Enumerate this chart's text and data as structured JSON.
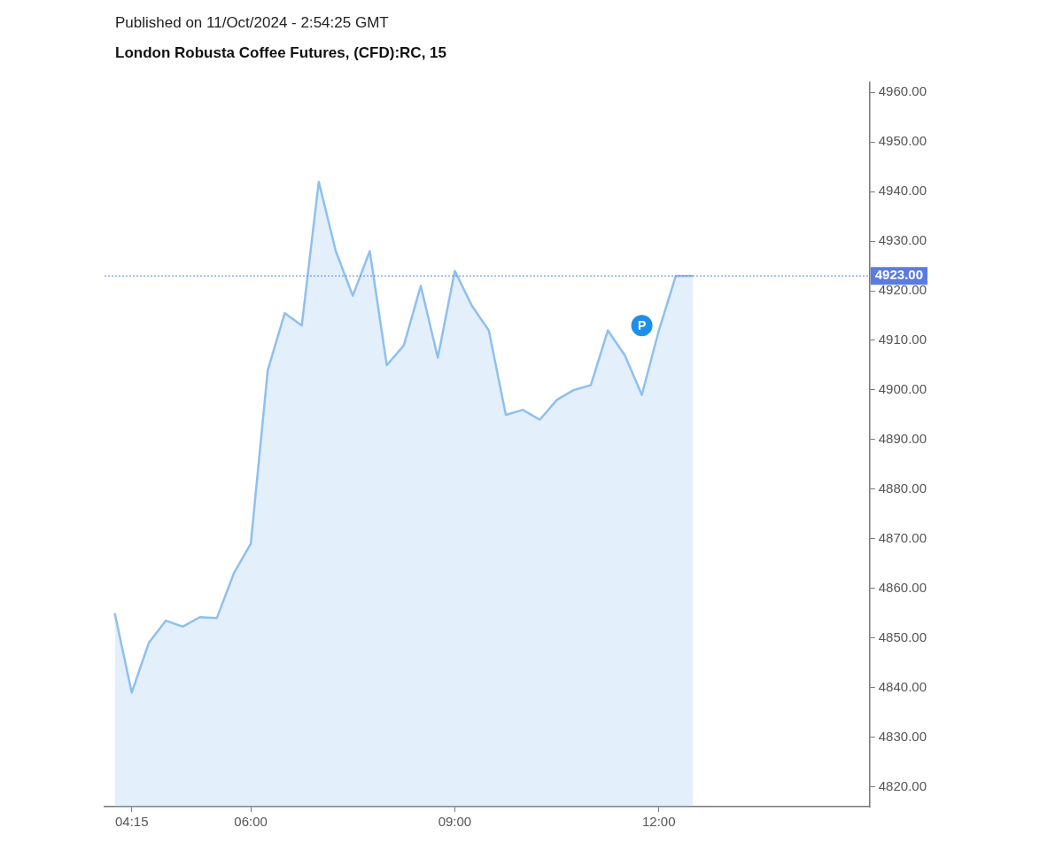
{
  "chart_data": {
    "type": "area",
    "subtitle": "Published on 11/Oct/2024 - 2:54:25 GMT",
    "title": "London Robusta Coffee Futures, (CFD):RC, 15",
    "x": [
      4,
      4.25,
      4.5,
      4.75,
      5,
      5.25,
      5.5,
      5.75,
      6,
      6.25,
      6.5,
      6.75,
      7,
      7.25,
      7.5,
      7.75,
      8,
      8.25,
      8.5,
      8.75,
      9,
      9.25,
      9.5,
      9.75,
      10,
      10.25,
      10.5,
      10.75,
      11,
      11.25,
      11.5,
      11.75,
      12,
      12.25,
      12.5
    ],
    "series": [
      {
        "color": "#8ec0ef",
        "values": [
          4855,
          4839,
          4849,
          4853.5,
          4852.3,
          4854.2,
          4854,
          4863,
          4869,
          4904,
          4915.5,
          4913,
          4942,
          4928,
          4919,
          4928,
          4905,
          4909,
          4921,
          4906.5,
          4924,
          4917,
          4912,
          4895,
          4896,
          4894,
          4898,
          4900,
          4901,
          4912,
          4907,
          4899,
          4912,
          4923,
          4923
        ]
      }
    ],
    "xlim": [
      3.85,
      15.1
    ],
    "xticks": [
      {
        "value": 4.25,
        "label": "04:15"
      },
      {
        "value": 6,
        "label": "06:00"
      },
      {
        "value": 9,
        "label": "09:00"
      },
      {
        "value": 12,
        "label": "12:00"
      }
    ],
    "ylim": [
      4816,
      4962
    ],
    "yticks": [
      {
        "value": 4820,
        "label": "4820.00"
      },
      {
        "value": 4830,
        "label": "4830.00"
      },
      {
        "value": 4840,
        "label": "4840.00"
      },
      {
        "value": 4850,
        "label": "4850.00"
      },
      {
        "value": 4860,
        "label": "4860.00"
      },
      {
        "value": 4870,
        "label": "4870.00"
      },
      {
        "value": 4880,
        "label": "4880.00"
      },
      {
        "value": 4890,
        "label": "4890.00"
      },
      {
        "value": 4900,
        "label": "4900.00"
      },
      {
        "value": 4910,
        "label": "4910.00"
      },
      {
        "value": 4920,
        "label": "4920.00"
      },
      {
        "value": 4930,
        "label": "4930.00"
      },
      {
        "value": 4940,
        "label": "4940.00"
      },
      {
        "value": 4950,
        "label": "4950.00"
      },
      {
        "value": 4960,
        "label": "4960.00"
      }
    ],
    "ref_lines": [
      {
        "axis": "y",
        "value": 4923,
        "label": "4923.00",
        "color": "#5b7be0",
        "line_style": "dotted"
      }
    ],
    "annotations": [
      {
        "text": "P",
        "x": 11.75,
        "y": 4913
      }
    ],
    "grid": false,
    "legend": false,
    "marker": "none",
    "line_style": "solid"
  }
}
